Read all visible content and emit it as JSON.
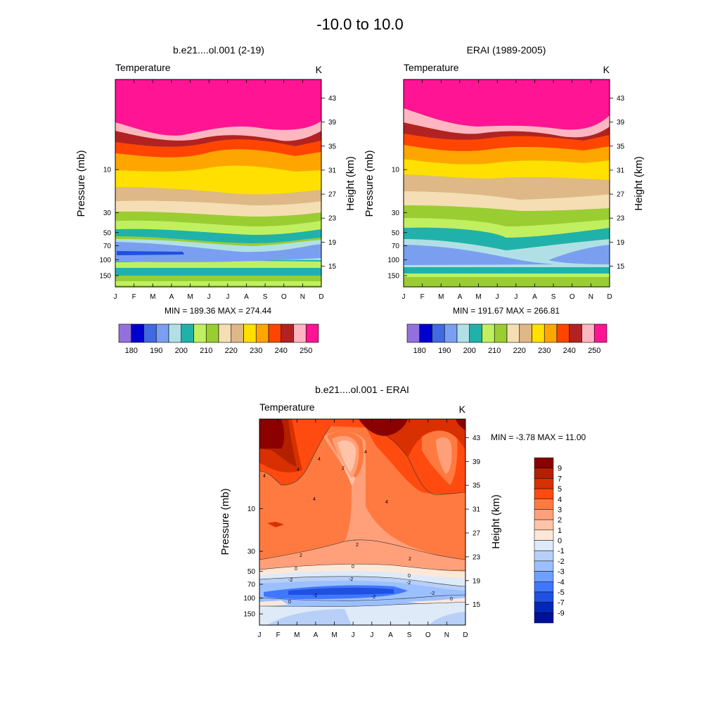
{
  "page_title": "-10.0 to  10.0",
  "chart_data": [
    {
      "type": "heatmap",
      "title": "b.e21....ol.001 (2-19)",
      "left_string": "Temperature",
      "right_string": "K",
      "xlabel": "",
      "ylabel": "Pressure (mb)",
      "right_axis_label": "Height (km)",
      "x": [
        "J",
        "F",
        "M",
        "A",
        "M",
        "J",
        "J",
        "A",
        "S",
        "O",
        "N",
        "D"
      ],
      "pressure_ticks": [
        "10",
        "30",
        "50",
        "70",
        "100",
        "150"
      ],
      "pressure_tick_values": [
        10,
        30,
        50,
        70,
        100,
        150
      ],
      "height_ticks": [
        "43",
        "39",
        "35",
        "31",
        "27",
        "23",
        "19",
        "15"
      ],
      "y_range_mb": [
        1,
        200
      ],
      "stat_text": "MIN = 189.36  MAX = 274.44",
      "min": 189.36,
      "max": 274.44,
      "contour_levels": [
        175,
        180,
        185,
        190,
        195,
        200,
        205,
        210,
        215,
        220,
        225,
        230,
        235,
        240,
        245,
        250,
        255
      ],
      "bands_bottom_to_top": [
        {
          "level": 210,
          "color": "#9acd32"
        },
        {
          "level": 215,
          "color": "#c0f060"
        },
        {
          "level": 200,
          "color": "#20b2aa"
        },
        {
          "level": 205,
          "color": "#c0f060"
        },
        {
          "level": 200,
          "color": "#20b2aa"
        },
        {
          "level": 195,
          "color": "#b0e0e6"
        },
        {
          "level": 190,
          "color": "#7b9ff0"
        },
        {
          "level": 200,
          "color": "#20b2aa"
        },
        {
          "level": 205,
          "color": "#c0f060"
        },
        {
          "level": 210,
          "color": "#9acd32"
        },
        {
          "level": 215,
          "color": "#f5deb3"
        },
        {
          "level": 220,
          "color": "#deb887"
        },
        {
          "level": 225,
          "color": "#ffe000"
        },
        {
          "level": 230,
          "color": "#ffa500"
        },
        {
          "level": 235,
          "color": "#ff4500"
        },
        {
          "level": 240,
          "color": "#b22222"
        },
        {
          "level": 245,
          "color": "#ffb6c1"
        },
        {
          "level": 250,
          "color": "#ff1493"
        }
      ]
    },
    {
      "type": "heatmap",
      "title": "ERAI (1989-2005)",
      "left_string": "Temperature",
      "right_string": "K",
      "xlabel": "",
      "ylabel": "Pressure (mb)",
      "right_axis_label": "Height (km)",
      "x": [
        "J",
        "F",
        "M",
        "A",
        "M",
        "J",
        "J",
        "A",
        "S",
        "O",
        "N",
        "D"
      ],
      "pressure_ticks": [
        "10",
        "30",
        "50",
        "70",
        "100",
        "150"
      ],
      "pressure_tick_values": [
        10,
        30,
        50,
        70,
        100,
        150
      ],
      "height_ticks": [
        "43",
        "39",
        "35",
        "31",
        "27",
        "23",
        "19",
        "15"
      ],
      "y_range_mb": [
        1,
        200
      ],
      "stat_text": "MIN = 191.67  MAX = 266.81",
      "min": 191.67,
      "max": 266.81
    },
    {
      "type": "heatmap",
      "title": "b.e21....ol.001 - ERAI",
      "left_string": "Temperature",
      "right_string": "K",
      "xlabel": "",
      "ylabel": "Pressure (mb)",
      "right_axis_label": "Height (km)",
      "x": [
        "J",
        "F",
        "M",
        "A",
        "M",
        "J",
        "J",
        "A",
        "S",
        "O",
        "N",
        "D"
      ],
      "pressure_ticks": [
        "10",
        "30",
        "50",
        "70",
        "100",
        "150"
      ],
      "pressure_tick_values": [
        10,
        30,
        50,
        70,
        100,
        150
      ],
      "height_ticks": [
        "43",
        "39",
        "35",
        "31",
        "27",
        "23",
        "19",
        "15"
      ],
      "y_range_mb": [
        1,
        200
      ],
      "stat_text": "MIN =  -3.78  MAX =  11.00",
      "min": -3.78,
      "max": 11.0,
      "contour_line_labels": [
        "4",
        "4",
        "4",
        "2",
        "4",
        "4",
        "4",
        "2",
        "2",
        "0",
        "0",
        "-2",
        "-2",
        "-2",
        "0",
        "-2",
        "-2",
        "-2",
        "0",
        "0",
        "2"
      ]
    }
  ],
  "top_colorbar": {
    "labels": [
      "180",
      "190",
      "200",
      "210",
      "220",
      "230",
      "240",
      "250"
    ],
    "colors": [
      "#9370db",
      "#0000cd",
      "#4169e1",
      "#7b9ff0",
      "#b0e0e6",
      "#20b2aa",
      "#c0f060",
      "#9acd32",
      "#f5deb3",
      "#deb887",
      "#ffe000",
      "#ffa500",
      "#ff4500",
      "#b22222",
      "#ffb6c1",
      "#ff1493"
    ]
  },
  "diff_colorbar": {
    "labels": [
      "9",
      "7",
      "5",
      "4",
      "3",
      "2",
      "1",
      "0",
      "-1",
      "-2",
      "-3",
      "-4",
      "-5",
      "-7",
      "-9"
    ],
    "colors": [
      "#8b0000",
      "#b22000",
      "#d83000",
      "#ff4a10",
      "#ff7a40",
      "#ffa07a",
      "#ffc4a8",
      "#fde8d8",
      "#dfeaf8",
      "#b8d0f8",
      "#9cc0ff",
      "#6ea0ff",
      "#3f78ff",
      "#2050e0",
      "#0028b8",
      "#00109a"
    ]
  }
}
